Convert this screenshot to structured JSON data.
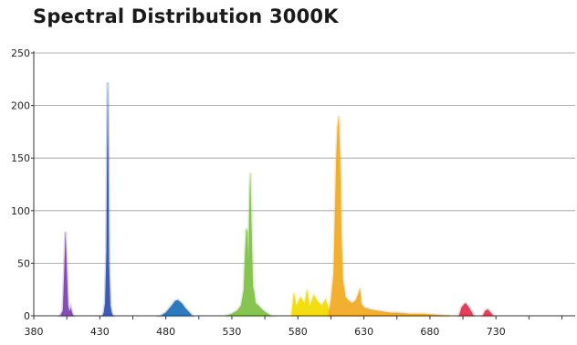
{
  "chart_data": {
    "type": "area",
    "title": "Spectral Distribution 3000K",
    "xlabel": "",
    "ylabel": "",
    "xlim": [
      380,
      790
    ],
    "ylim": [
      0,
      250
    ],
    "x_ticks": [
      380,
      430,
      480,
      530,
      580,
      630,
      680,
      730
    ],
    "y_ticks": [
      0,
      50,
      100,
      150,
      200,
      250
    ],
    "grid": "horizontal",
    "legend": "none",
    "peaks": [
      {
        "wavelength": 404,
        "value": 80
      },
      {
        "wavelength": 436,
        "value": 222
      },
      {
        "wavelength": 488,
        "value": 15
      },
      {
        "wavelength": 544,
        "value": 136
      },
      {
        "wavelength": 611,
        "value": 190
      },
      {
        "wavelength": 707,
        "value": 12
      }
    ],
    "series": [
      {
        "x": [
          400,
          402,
          403,
          404,
          405,
          406,
          407,
          408,
          409,
          410
        ],
        "values": [
          0,
          5,
          40,
          80,
          45,
          10,
          4,
          8,
          3,
          0
        ],
        "color": "#7b3fb0"
      },
      {
        "x": [
          432,
          433,
          434,
          435,
          435.5,
          436,
          436.5,
          437,
          438,
          439,
          440
        ],
        "values": [
          0,
          3,
          12,
          60,
          150,
          222,
          150,
          50,
          10,
          3,
          0
        ],
        "color": "#2f4fb0"
      },
      {
        "x": [
          476,
          480,
          484,
          487,
          489,
          492,
          495,
          498,
          500
        ],
        "values": [
          0,
          3,
          9,
          14,
          15,
          12,
          7,
          3,
          0
        ],
        "color": "#1d6fb8"
      },
      {
        "x": [
          525,
          530,
          534,
          537,
          539,
          540,
          541,
          542,
          542.5,
          543,
          543.5,
          544,
          545,
          546,
          547,
          548,
          550,
          553,
          556,
          560
        ],
        "values": [
          0,
          2,
          5,
          10,
          25,
          60,
          83,
          80,
          50,
          90,
          120,
          136,
          80,
          28,
          22,
          12,
          10,
          6,
          3,
          0
        ],
        "color": "#7cc043"
      },
      {
        "x": [
          575,
          577,
          579,
          582,
          585,
          587,
          589,
          592,
          595,
          598,
          601,
          603,
          605
        ],
        "values": [
          0,
          22,
          10,
          18,
          12,
          25,
          9,
          20,
          14,
          10,
          16,
          8,
          0
        ],
        "color": "#f2dc00"
      },
      {
        "x": [
          603,
          605,
          607,
          608,
          609,
          610,
          611,
          612,
          613,
          614,
          616,
          618,
          621,
          624,
          626,
          627,
          628,
          630,
          635,
          640,
          645,
          650,
          655,
          665,
          675,
          685,
          695
        ],
        "values": [
          0,
          15,
          40,
          95,
          150,
          180,
          190,
          150,
          80,
          35,
          18,
          15,
          12,
          15,
          22,
          26,
          12,
          8,
          6,
          5,
          4,
          3,
          3,
          2,
          2,
          1,
          0
        ],
        "color": "#f2a81e"
      },
      {
        "x": [
          702,
          704,
          706,
          707,
          709,
          711,
          713
        ],
        "values": [
          0,
          8,
          11,
          12,
          9,
          5,
          0
        ],
        "color": "#e0304a"
      },
      {
        "x": [
          720,
          722,
          724,
          726,
          728
        ],
        "values": [
          0,
          5,
          6,
          3,
          0
        ],
        "color": "#e0304a"
      }
    ]
  }
}
